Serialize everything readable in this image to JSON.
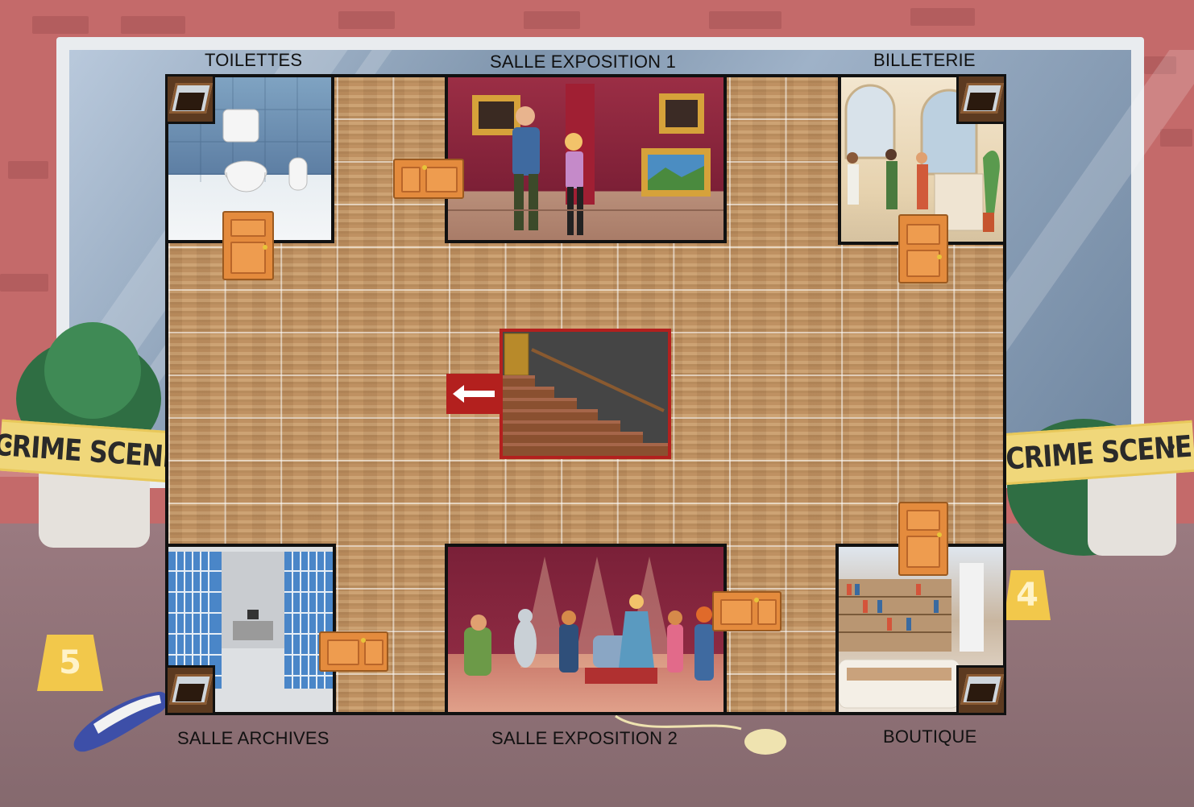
{
  "rooms": {
    "toilettes": "TOILETTES",
    "expo1": "SALLE EXPOSITION 1",
    "billeterie": "BILLETERIE",
    "archives": "SALLE ARCHIVES",
    "expo2": "SALLE EXPOSITION 2",
    "boutique": "BOUTIQUE"
  },
  "background": {
    "tape_left": "CRIME SCENE",
    "tape_right": "CRIME SCENE",
    "marker_left": "5",
    "marker_right": "4"
  },
  "colors": {
    "wall": "#c46a6a",
    "floor_tile": "#c69a6a",
    "room_border": "#111111",
    "stairs_border": "#b3201e",
    "door": "#e48b3d",
    "tape": "#f0d77a"
  },
  "icons": {
    "trapdoor": "trapdoor-icon",
    "door": "door-icon",
    "stairs": "stairs-icon",
    "arrow": "arrow-left-icon"
  }
}
